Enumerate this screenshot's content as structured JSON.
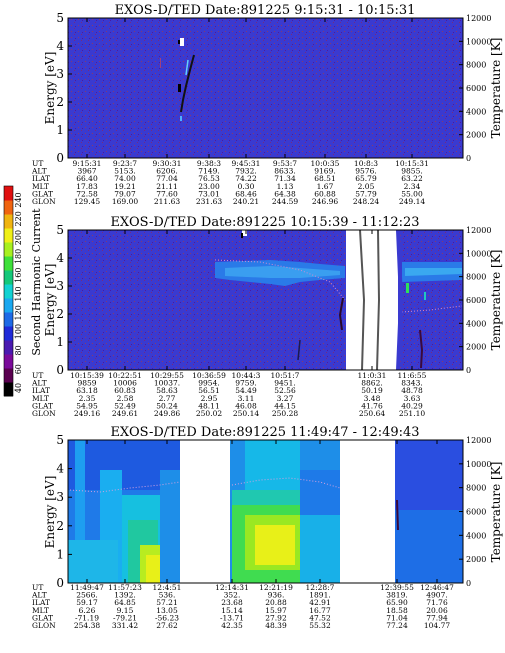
{
  "chart_data": [
    {
      "type": "heatmap",
      "title": "EXOS-D/TED   Date:891225  9:15:31 - 10:15:31",
      "ylabel": "Energy [eV]",
      "y2label": "Temperature [K]",
      "ylim": [
        0,
        5
      ],
      "y2lim": [
        0,
        12000
      ],
      "yticks": [
        "0",
        "1",
        "2",
        "3",
        "4",
        "5"
      ],
      "y2ticks": [
        "0",
        "2000",
        "4000",
        "6000",
        "8000",
        "10000",
        "12000"
      ],
      "background": "#3a3ad0",
      "orbit": {
        "labels": [
          "UT",
          "ALT",
          "ILAT",
          "MLT",
          "GLAT",
          "GLON"
        ],
        "columns": [
          [
            "9:15:31",
            "3967",
            "66.40",
            "17.83",
            "72.58",
            "129.45"
          ],
          [
            "9:23:7",
            "5153.",
            "74.00",
            "19.21",
            "79.07",
            "169.00"
          ],
          [
            "9:30:31",
            "6206.",
            "77.04",
            "21.11",
            "77.60",
            "211.63"
          ],
          [
            "9:38:3",
            "7149.",
            "76.53",
            "23.00",
            "73.01",
            "231.63"
          ],
          [
            "9:45:31",
            "7932.",
            "74.22",
            "0.30",
            "68.46",
            "240.21"
          ],
          [
            "9:53:7",
            "8633.",
            "71.34",
            "1.13",
            "64.38",
            "244.59"
          ],
          [
            "10:0:35",
            "9169.",
            "68.51",
            "1.67",
            "60.88",
            "246.96"
          ],
          [
            "10:8:3",
            "9576.",
            "65.79",
            "2.05",
            "57.79",
            "248.24"
          ],
          [
            "10:15:31",
            "9855.",
            "63.22",
            "2.34",
            "55.00",
            "249.14"
          ]
        ]
      }
    },
    {
      "type": "heatmap",
      "title": "EXOS-D/TED   Date:891225  10:15:39 - 11:12:23",
      "ylabel": "Energy [eV]",
      "y2label": "Temperature [K]",
      "ylim": [
        0,
        5
      ],
      "y2lim": [
        0,
        12000
      ],
      "yticks": [
        "0",
        "1",
        "2",
        "3",
        "4",
        "5"
      ],
      "y2ticks": [
        "0",
        "2000",
        "4000",
        "6000",
        "8000",
        "10000",
        "12000"
      ],
      "background": "#3a3ad0",
      "colorbar": {
        "label": "Second Harmonic Current",
        "ticks": [
          "40",
          "60",
          "80",
          "100",
          "120",
          "140",
          "160",
          "180",
          "200",
          "220",
          "240"
        ],
        "colors": [
          "#000000",
          "#5a0050",
          "#7a0a9a",
          "#4a1ab0",
          "#1f2ad8",
          "#1e6ae6",
          "#1aa8f0",
          "#12d2d2",
          "#14c87a",
          "#3ee03a",
          "#a8f020",
          "#f0f018",
          "#f0b410",
          "#f06410",
          "#e01010"
        ]
      },
      "orbit": {
        "labels": [
          "UT",
          "ALT",
          "ILAT",
          "MLT",
          "GLAT",
          "GLON"
        ],
        "columns": [
          [
            "10:15:39",
            "9859",
            "63.18",
            "2.35",
            "54.95",
            "249.16"
          ],
          [
            "10:22:51",
            "10006",
            "60.83",
            "2.58",
            "52.49",
            "249.61"
          ],
          [
            "10:29:55",
            "10037.",
            "58.63",
            "2.77",
            "50.24",
            "249.86"
          ],
          [
            "10:36:59",
            "9954.",
            "56.51",
            "2.95",
            "48.11",
            "250.02"
          ],
          [
            "10:44:3",
            "9759.",
            "54.49",
            "3.11",
            "46.08",
            "250.14"
          ],
          [
            "10:51:7",
            "9451.",
            "52.56",
            "3.27",
            "44.15",
            "250.28"
          ],
          [
            "11:0:31",
            "8862.",
            "50.19",
            "3.48",
            "41.76",
            "250.64"
          ],
          [
            "11:6:55",
            "8343.",
            "48.78",
            "3.63",
            "40.29",
            "251.10"
          ]
        ]
      }
    },
    {
      "type": "heatmap",
      "title": "EXOS-D/TED   Date:891225  11:49:47 - 12:49:43",
      "ylabel": "Energy [eV]",
      "y2label": "Temperature [K]",
      "ylim": [
        0,
        5
      ],
      "y2lim": [
        0,
        12000
      ],
      "yticks": [
        "0",
        "1",
        "2",
        "3",
        "4",
        "5"
      ],
      "y2ticks": [
        "0",
        "2000",
        "4000",
        "6000",
        "8000",
        "10000",
        "12000"
      ],
      "background": "#3a3ad0",
      "orbit": {
        "labels": [
          "UT",
          "ALT",
          "ILAT",
          "MLT",
          "GLAT",
          "GLON"
        ],
        "columns": [
          [
            "11:49:47",
            "2566.",
            "59.17",
            "6.26",
            "-71.19",
            "254.38"
          ],
          [
            "11:57:23",
            "1392.",
            "64.85",
            "9.15",
            "-79.21",
            "331.42"
          ],
          [
            "12:4:51",
            "536.",
            "57.21",
            "13.05",
            "-56.23",
            "27.62"
          ],
          [
            "12:14:31",
            "352.",
            "23.68",
            "15.14",
            "-13.71",
            "42.35"
          ],
          [
            "12:21:19",
            "936.",
            "20.88",
            "15.97",
            "27.92",
            "48.39"
          ],
          [
            "12:28:7",
            "1891.",
            "42.91",
            "16.77",
            "47.52",
            "55.32"
          ],
          [
            "12:39:55",
            "3819.",
            "65.90",
            "18.58",
            "71.04",
            "77.24"
          ],
          [
            "12:46:47",
            "4907.",
            "71.76",
            "20.06",
            "77.94",
            "104.77"
          ]
        ]
      }
    }
  ]
}
